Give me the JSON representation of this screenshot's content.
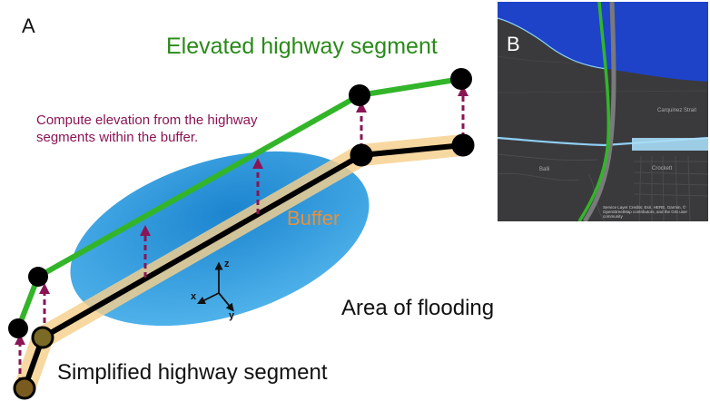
{
  "panel_a": {
    "label": "A",
    "title": "Elevated highway segment",
    "note": "Compute elevation from the highway segments within the buffer.",
    "buffer_label": "Buffer",
    "flood_label": "Area of flooding",
    "simplified_label": "Simplified highway segment",
    "axes": {
      "x": "x",
      "y": "y",
      "z": "z"
    }
  },
  "panel_b": {
    "label": "B",
    "strait_label": "Carquinez Strait",
    "town_label": "Crockett",
    "road_label": "Balli",
    "credit": "Service Layer Credits: Esri, HERE, Garmin, © OpenStreetMap contributors, and the GIS user community"
  },
  "colors": {
    "highway_elevated": "#33b52a",
    "highway_simplified": "#000000",
    "buffer": "#f6cf8c",
    "flood": "#3aa2dc",
    "arrow": "#8a1555",
    "map_background": "#3a3a3c",
    "water": "#1e43c8"
  }
}
